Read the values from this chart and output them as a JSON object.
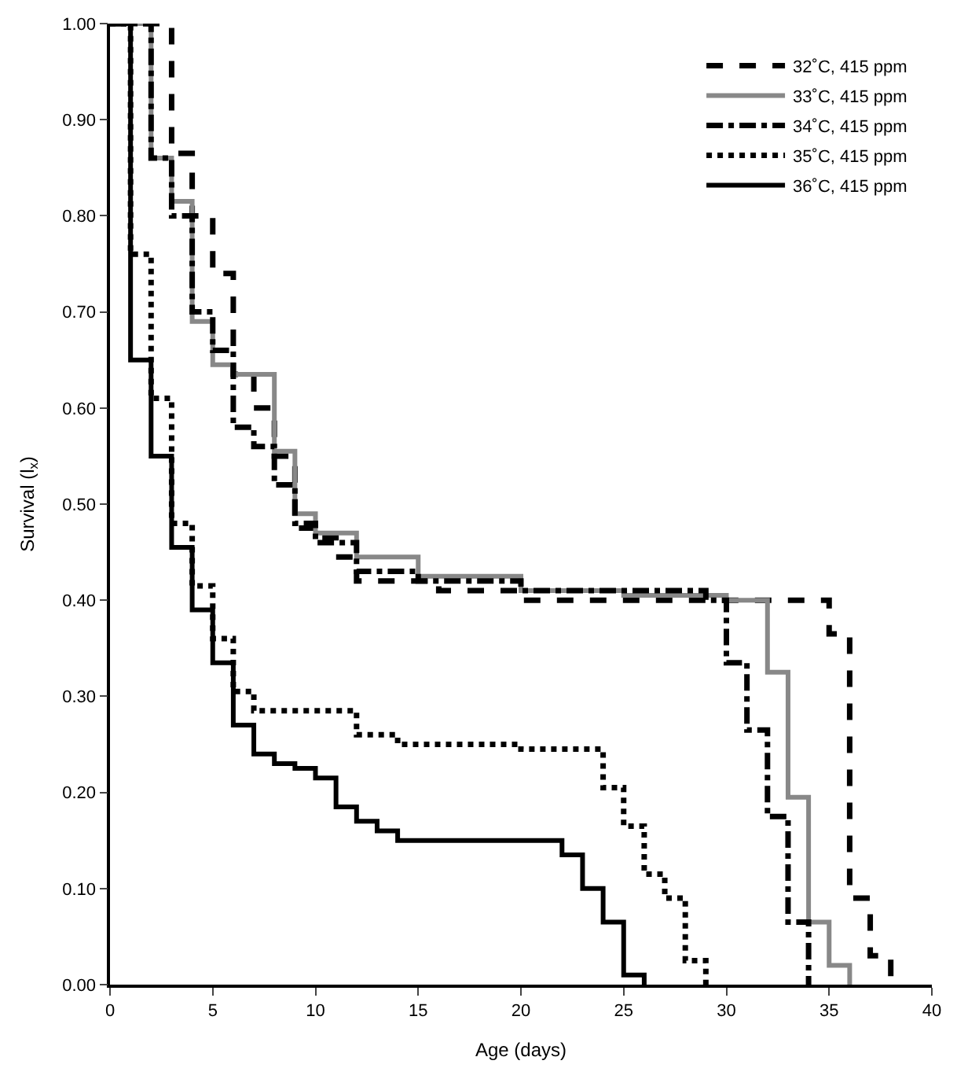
{
  "chart_data": {
    "type": "step",
    "xlabel": "Age (days)",
    "ylabel": "Survival (l$_{x}$)",
    "xlim": [
      0,
      40
    ],
    "xticks": [
      0,
      5,
      10,
      15,
      20,
      25,
      30,
      35,
      40
    ],
    "ylim": [
      0,
      1
    ],
    "yticks": [
      {
        "value": 0,
        "label": "0.00"
      },
      {
        "value": 0.1,
        "label": "0.10"
      },
      {
        "value": 0.2,
        "label": "0.20"
      },
      {
        "value": 0.3,
        "label": "0.30"
      },
      {
        "value": 0.4,
        "label": "0.40"
      },
      {
        "value": 0.5,
        "label": "0.50"
      },
      {
        "value": 0.6,
        "label": "0.60"
      },
      {
        "value": 0.7,
        "label": "0.70"
      },
      {
        "value": 0.8,
        "label": "0.80"
      },
      {
        "value": 0.9,
        "label": "0.90"
      },
      {
        "value": 1,
        "label": "1.00"
      }
    ],
    "legend": "top right",
    "marker": "none",
    "series": [
      {
        "name": "32˚C, 415 ppm",
        "color": "#000000",
        "line_style": "dashed",
        "x": [
          0,
          3,
          4,
          5,
          6,
          7,
          8,
          9,
          10,
          11,
          12,
          16,
          20,
          35,
          36,
          37,
          38
        ],
        "values": [
          1.0,
          0.865,
          0.8,
          0.74,
          0.635,
          0.6,
          0.55,
          0.475,
          0.465,
          0.445,
          0.42,
          0.41,
          0.4,
          0.365,
          0.09,
          0.03,
          0.0
        ]
      },
      {
        "name": "33˚C, 415 ppm",
        "color": "#888888",
        "line_style": "solid",
        "x": [
          0,
          2,
          3,
          4,
          5,
          6,
          8,
          9,
          10,
          12,
          15,
          20,
          25,
          30,
          32,
          33,
          34,
          35,
          36
        ],
        "values": [
          1.0,
          0.86,
          0.815,
          0.69,
          0.645,
          0.635,
          0.555,
          0.49,
          0.47,
          0.445,
          0.425,
          0.41,
          0.405,
          0.4,
          0.325,
          0.195,
          0.065,
          0.02,
          0.0
        ]
      },
      {
        "name": "34˚C, 415 ppm",
        "color": "#000000",
        "line_style": "dashdot",
        "x": [
          0,
          2,
          3,
          4,
          5,
          6,
          7,
          8,
          9,
          10,
          12,
          15,
          20,
          29,
          30,
          31,
          32,
          33,
          34
        ],
        "values": [
          1.0,
          0.86,
          0.8,
          0.7,
          0.66,
          0.58,
          0.56,
          0.52,
          0.48,
          0.46,
          0.43,
          0.42,
          0.41,
          0.4,
          0.335,
          0.265,
          0.175,
          0.065,
          0.0
        ]
      },
      {
        "name": "35˚C, 415 ppm",
        "color": "#000000",
        "line_style": "dotted",
        "x": [
          0,
          1,
          2,
          3,
          4,
          5,
          6,
          7,
          12,
          14,
          20,
          24,
          25,
          26,
          27,
          28,
          29
        ],
        "values": [
          1.0,
          0.76,
          0.61,
          0.48,
          0.415,
          0.36,
          0.305,
          0.285,
          0.26,
          0.25,
          0.245,
          0.205,
          0.165,
          0.115,
          0.09,
          0.025,
          0.0
        ]
      },
      {
        "name": "36˚C, 415 ppm",
        "color": "#000000",
        "line_style": "solid",
        "x": [
          0,
          1,
          2,
          3,
          4,
          5,
          6,
          7,
          8,
          9,
          10,
          11,
          12,
          13,
          14,
          22,
          23,
          24,
          25,
          26
        ],
        "values": [
          1.0,
          0.65,
          0.55,
          0.455,
          0.39,
          0.335,
          0.27,
          0.24,
          0.23,
          0.225,
          0.215,
          0.185,
          0.17,
          0.16,
          0.15,
          0.135,
          0.1,
          0.065,
          0.01,
          0.0
        ]
      }
    ]
  }
}
